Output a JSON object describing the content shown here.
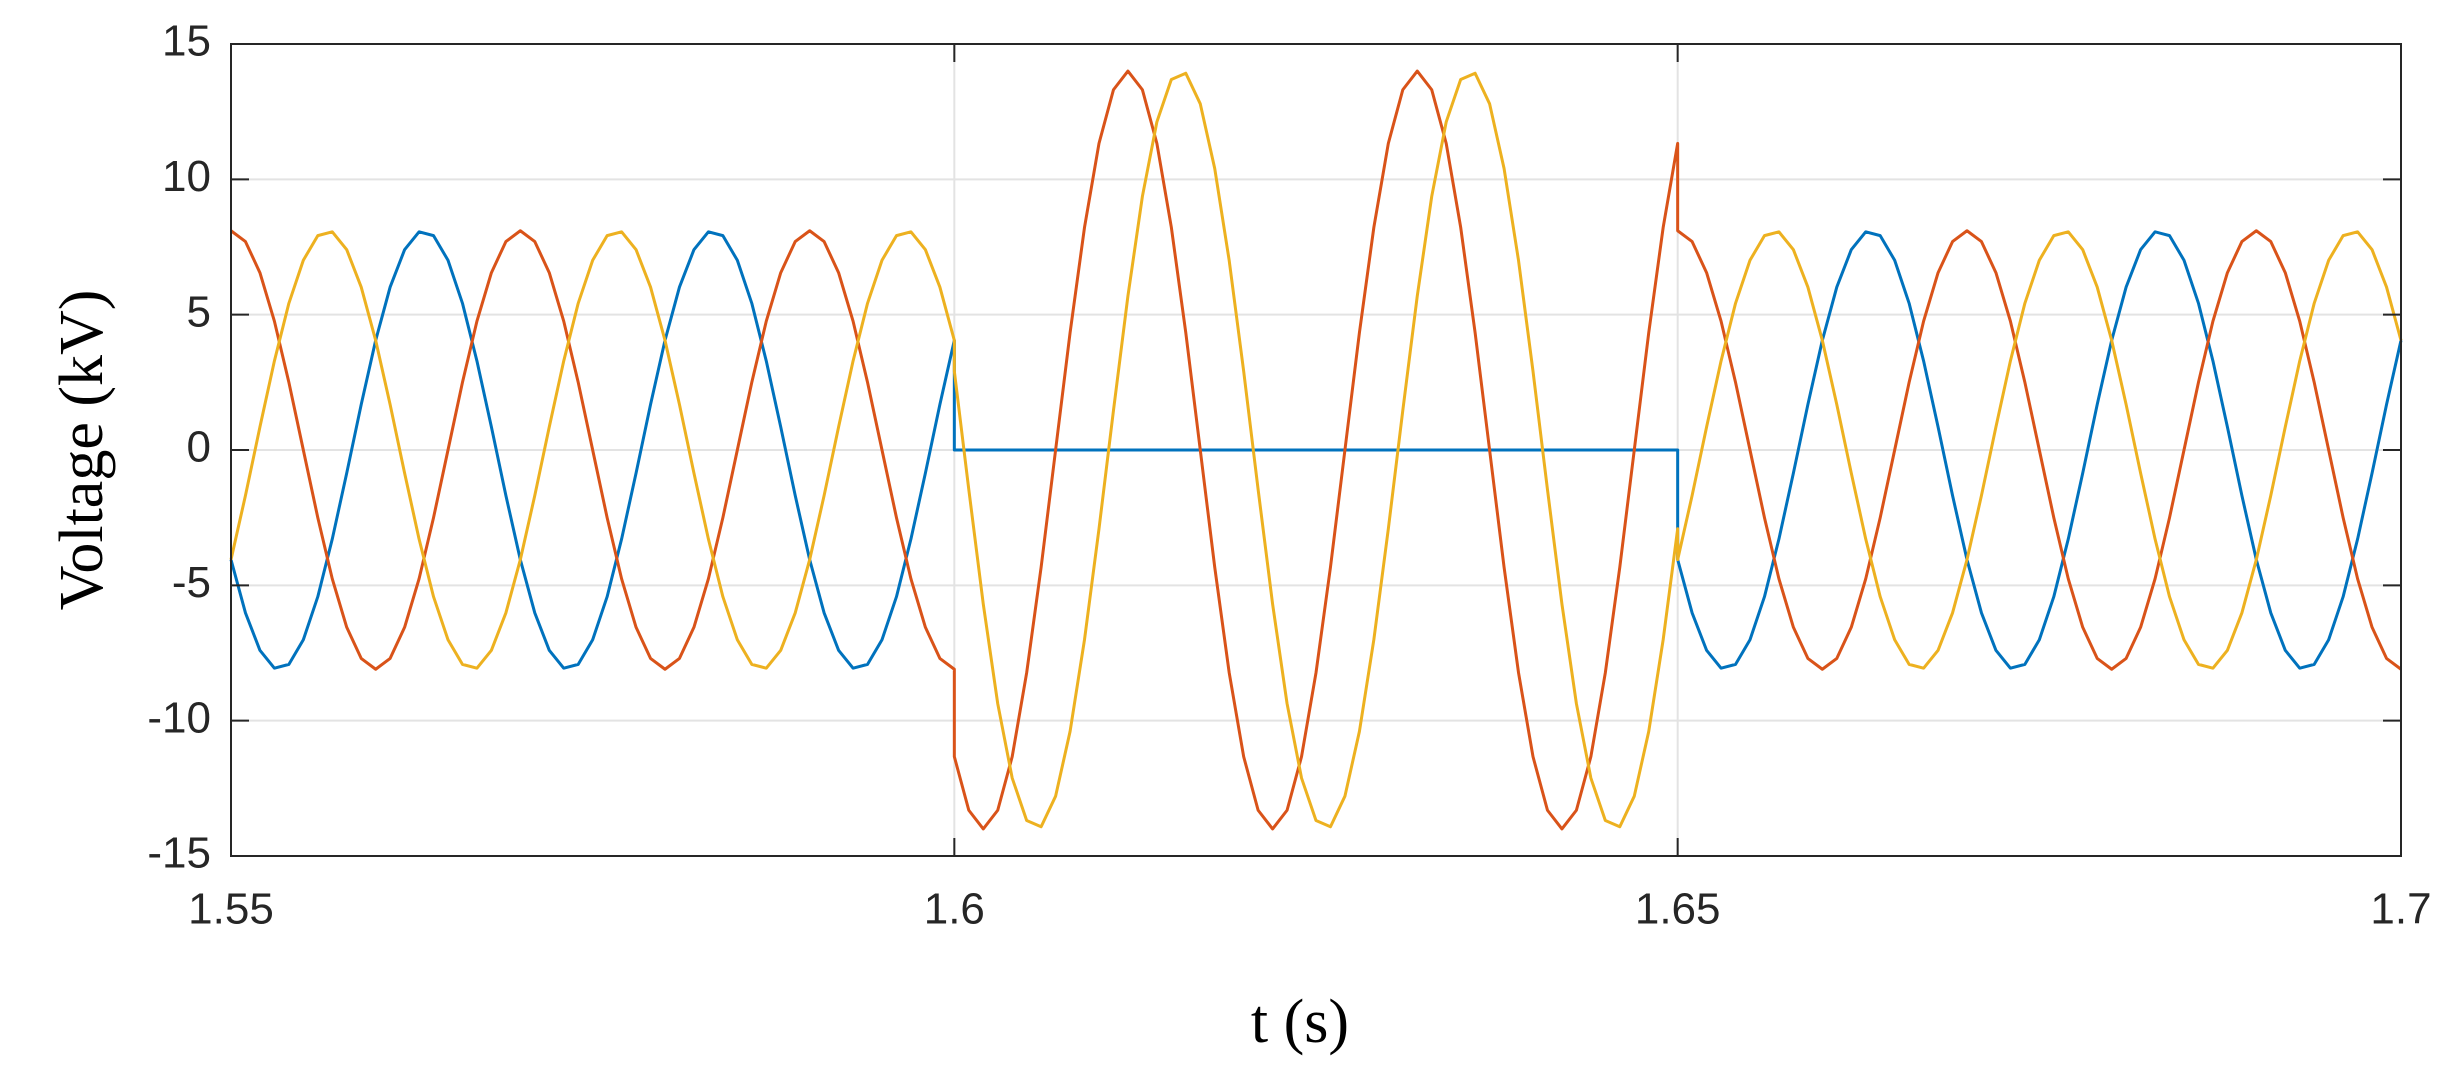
{
  "chart_data": {
    "type": "line",
    "xlabel": "t (s)",
    "ylabel": "Voltage (kV)",
    "xlim": [
      1.55,
      1.7
    ],
    "xticks": [
      1.55,
      1.6,
      1.65,
      1.7
    ],
    "ylim": [
      -15,
      15
    ],
    "yticks": [
      -15,
      -10,
      -5,
      0,
      5,
      10,
      15
    ],
    "grid": true,
    "x": [
      1.55,
      1.551,
      1.552,
      1.553,
      1.554,
      1.555,
      1.556,
      1.557,
      1.558,
      1.559,
      1.56,
      1.561,
      1.562,
      1.563,
      1.564,
      1.565,
      1.566,
      1.567,
      1.568,
      1.569,
      1.57,
      1.571,
      1.572,
      1.573,
      1.574,
      1.575,
      1.576,
      1.577,
      1.578,
      1.579,
      1.58,
      1.581,
      1.582,
      1.583,
      1.584,
      1.585,
      1.586,
      1.587,
      1.588,
      1.589,
      1.59,
      1.591,
      1.592,
      1.593,
      1.594,
      1.595,
      1.596,
      1.597,
      1.598,
      1.599,
      1.6,
      1.6,
      1.601,
      1.602,
      1.603,
      1.604,
      1.605,
      1.606,
      1.607,
      1.608,
      1.609,
      1.61,
      1.611,
      1.612,
      1.613,
      1.614,
      1.615,
      1.616,
      1.617,
      1.618,
      1.619,
      1.62,
      1.621,
      1.622,
      1.623,
      1.624,
      1.625,
      1.626,
      1.627,
      1.628,
      1.629,
      1.63,
      1.631,
      1.632,
      1.633,
      1.634,
      1.635,
      1.636,
      1.637,
      1.638,
      1.639,
      1.64,
      1.641,
      1.642,
      1.643,
      1.644,
      1.645,
      1.646,
      1.647,
      1.648,
      1.649,
      1.65,
      1.65,
      1.651,
      1.652,
      1.653,
      1.654,
      1.655,
      1.656,
      1.657,
      1.658,
      1.659,
      1.66,
      1.661,
      1.662,
      1.663,
      1.664,
      1.665,
      1.666,
      1.667,
      1.668,
      1.669,
      1.67,
      1.671,
      1.672,
      1.673,
      1.674,
      1.675,
      1.676,
      1.677,
      1.678,
      1.679,
      1.68,
      1.681,
      1.682,
      1.683,
      1.684,
      1.685,
      1.686,
      1.687,
      1.688,
      1.689,
      1.69,
      1.691,
      1.692,
      1.693,
      1.694,
      1.695,
      1.696,
      1.697,
      1.698,
      1.699,
      1.7
    ],
    "series": [
      {
        "color": "#0072bd",
        "values": [
          -4.05,
          -6.02,
          -7.4,
          -8.06,
          -7.92,
          -7.01,
          -5.42,
          -3.29,
          -0.85,
          1.68,
          4.05,
          6.02,
          7.4,
          8.06,
          7.92,
          7.01,
          5.42,
          3.29,
          0.85,
          -1.68,
          -4.05,
          -6.02,
          -7.4,
          -8.06,
          -7.92,
          -7.01,
          -5.42,
          -3.29,
          -0.85,
          1.68,
          4.05,
          6.02,
          7.4,
          8.06,
          7.92,
          7.01,
          5.42,
          3.29,
          0.85,
          -1.68,
          -4.05,
          -6.02,
          -7.4,
          -8.06,
          -7.92,
          -7.01,
          -5.42,
          -3.29,
          -0.85,
          1.68,
          4.05,
          0,
          0,
          0,
          0,
          0,
          0,
          0,
          0,
          0,
          0,
          0,
          0,
          0,
          0,
          0,
          0,
          0,
          0,
          0,
          0,
          0,
          0,
          0,
          0,
          0,
          0,
          0,
          0,
          0,
          0,
          0,
          0,
          0,
          0,
          0,
          0,
          0,
          0,
          0,
          0,
          0,
          0,
          0,
          0,
          0,
          0,
          0,
          0,
          0,
          0,
          0,
          -4.05,
          -6.02,
          -7.4,
          -8.06,
          -7.92,
          -7.01,
          -5.42,
          -3.29,
          -0.85,
          1.68,
          4.05,
          6.02,
          7.4,
          8.06,
          7.92,
          7.01,
          5.42,
          3.29,
          0.85,
          -1.68,
          -4.05,
          -6.02,
          -7.4,
          -8.06,
          -7.92,
          -7.01,
          -5.42,
          -3.29,
          -0.85,
          1.68,
          4.05,
          6.02,
          7.4,
          8.06,
          7.92,
          7.01,
          5.42,
          3.29,
          0.85,
          -1.68,
          -4.05,
          -6.02,
          -7.4,
          -8.06,
          -7.92,
          -7.01,
          -5.42,
          -3.29,
          -0.85,
          1.68,
          4.05
        ]
      },
      {
        "color": "#d95319",
        "values": [
          8.1,
          7.7,
          6.55,
          4.76,
          2.5,
          0,
          -2.5,
          -4.76,
          -6.55,
          -7.7,
          -8.1,
          -7.7,
          -6.55,
          -4.76,
          -2.5,
          0,
          2.5,
          4.76,
          6.55,
          7.7,
          8.1,
          7.7,
          6.55,
          4.76,
          2.5,
          0,
          -2.5,
          -4.76,
          -6.55,
          -7.7,
          -8.1,
          -7.7,
          -6.55,
          -4.76,
          -2.5,
          0,
          2.5,
          4.76,
          6.55,
          7.7,
          8.1,
          7.7,
          6.55,
          4.76,
          2.5,
          0,
          -2.5,
          -4.76,
          -6.55,
          -7.7,
          -8.1,
          -11.33,
          -13.31,
          -14,
          -13.31,
          -11.33,
          -8.23,
          -4.33,
          0,
          4.33,
          8.23,
          11.33,
          13.31,
          14,
          13.31,
          11.33,
          8.23,
          4.33,
          0,
          -4.33,
          -8.23,
          -11.33,
          -13.31,
          -14,
          -13.31,
          -11.33,
          -8.23,
          -4.33,
          0,
          4.33,
          8.23,
          11.33,
          13.31,
          14,
          13.31,
          11.33,
          8.23,
          4.33,
          0,
          -4.33,
          -8.23,
          -11.33,
          -13.31,
          -14,
          -13.31,
          -11.33,
          -8.23,
          -4.33,
          0,
          4.33,
          8.23,
          11.33,
          8.1,
          7.7,
          6.55,
          4.76,
          2.5,
          0,
          -2.5,
          -4.76,
          -6.55,
          -7.7,
          -8.1,
          -7.7,
          -6.55,
          -4.76,
          -2.5,
          0,
          2.5,
          4.76,
          6.55,
          7.7,
          8.1,
          7.7,
          6.55,
          4.76,
          2.5,
          0,
          -2.5,
          -4.76,
          -6.55,
          -7.7,
          -8.1,
          -7.7,
          -6.55,
          -4.76,
          -2.5,
          0,
          2.5,
          4.76,
          6.55,
          7.7,
          8.1,
          7.7,
          6.55,
          4.76,
          2.5,
          0,
          -2.5,
          -4.76,
          -6.55,
          -7.7,
          -8.1
        ]
      },
      {
        "color": "#edb120",
        "values": [
          -4.05,
          -1.68,
          0.85,
          3.29,
          5.42,
          7.01,
          7.92,
          8.06,
          7.4,
          6.02,
          4.05,
          1.68,
          -0.85,
          -3.29,
          -5.42,
          -7.01,
          -7.92,
          -8.06,
          -7.4,
          -6.02,
          -4.05,
          -1.68,
          0.85,
          3.29,
          5.42,
          7.01,
          7.92,
          8.06,
          7.4,
          6.02,
          4.05,
          1.68,
          -0.85,
          -3.29,
          -5.42,
          -7.01,
          -7.92,
          -8.06,
          -7.4,
          -6.02,
          -4.05,
          -1.68,
          0.85,
          3.29,
          5.42,
          7.01,
          7.92,
          8.06,
          7.4,
          6.02,
          4.05,
          2.91,
          -1.46,
          -5.69,
          -9.37,
          -12.12,
          -13.69,
          -13.92,
          -12.79,
          -10.4,
          -7,
          -2.91,
          1.46,
          5.69,
          9.37,
          12.12,
          13.69,
          13.92,
          12.79,
          10.4,
          7,
          2.91,
          -1.46,
          -5.69,
          -9.37,
          -12.12,
          -13.69,
          -13.92,
          -12.79,
          -10.4,
          -7,
          -2.91,
          1.46,
          5.69,
          9.37,
          12.12,
          13.69,
          13.92,
          12.79,
          10.4,
          7,
          2.91,
          -1.46,
          -5.69,
          -9.37,
          -12.12,
          -13.69,
          -13.92,
          -12.79,
          -10.4,
          -7,
          -2.91,
          -4.05,
          -1.68,
          0.85,
          3.29,
          5.42,
          7.01,
          7.92,
          8.06,
          7.4,
          6.02,
          4.05,
          1.68,
          -0.85,
          -3.29,
          -5.42,
          -7.01,
          -7.92,
          -8.06,
          -7.4,
          -6.02,
          -4.05,
          -1.68,
          0.85,
          3.29,
          5.42,
          7.01,
          7.92,
          8.06,
          7.4,
          6.02,
          4.05,
          1.68,
          -0.85,
          -3.29,
          -5.42,
          -7.01,
          -7.92,
          -8.06,
          -7.4,
          -6.02,
          -4.05,
          -1.68,
          0.85,
          3.29,
          5.42,
          7.01,
          7.92,
          8.06,
          7.4,
          6.02,
          4.05
        ]
      }
    ]
  }
}
